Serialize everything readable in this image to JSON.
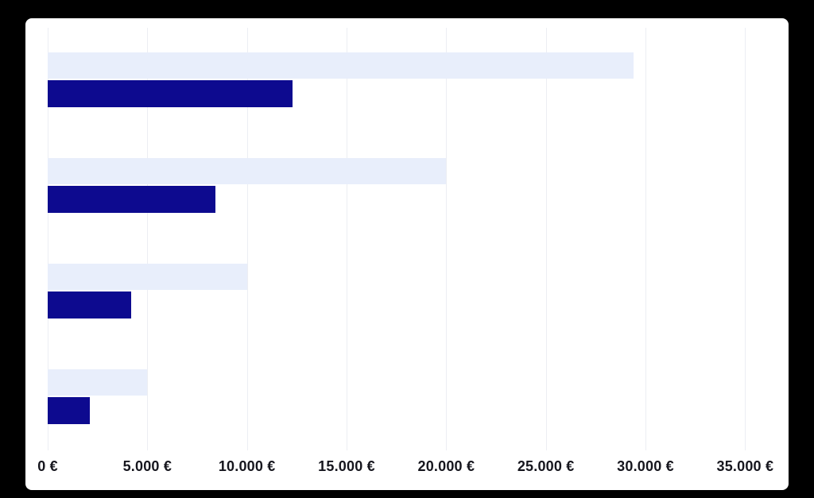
{
  "page": {
    "background_color": "#000000",
    "card_background_color": "#ffffff",
    "gridline_color": "#eceef3",
    "axis_label_color": "#16161e"
  },
  "chart_data": {
    "type": "bar",
    "orientation": "horizontal",
    "title": "",
    "grid": true,
    "legend": false,
    "categories": [
      "",
      "",
      "",
      ""
    ],
    "series": [
      {
        "name": "light-blue-series",
        "color": "#e8eefb",
        "values": [
          29400,
          20000,
          10000,
          5000
        ]
      },
      {
        "name": "dark-blue-series",
        "color": "#0d0a8f",
        "values": [
          12300,
          8400,
          4200,
          2100
        ]
      }
    ],
    "x_axis": {
      "tick_values": [
        0,
        5000,
        10000,
        15000,
        20000,
        25000,
        30000,
        35000
      ],
      "tick_labels": [
        "0 €",
        "5.000 €",
        "10.000 €",
        "15.000 €",
        "20.000 €",
        "25.000 €",
        "30.000 €",
        "35.000 €"
      ],
      "min": 0,
      "max": 37180,
      "unit": "€"
    },
    "y_axis": {
      "tick_labels": []
    }
  }
}
